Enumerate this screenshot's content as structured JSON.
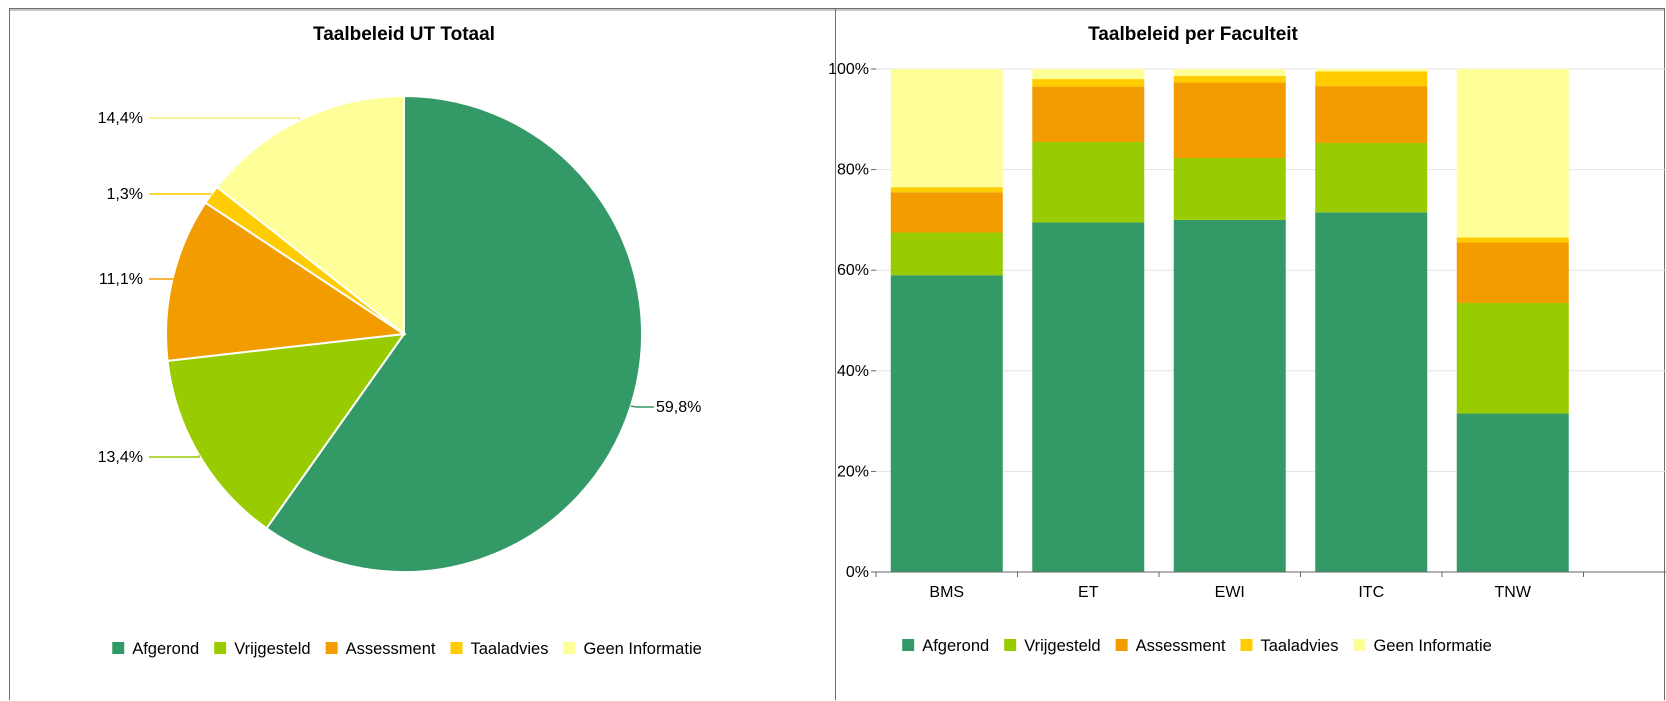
{
  "chart_data": [
    {
      "type": "pie",
      "title": "Taalbeleid UT Totaal",
      "slices": [
        {
          "label": "Afgerond",
          "value": 59.8,
          "value_label": "59,8%",
          "color": "#339966"
        },
        {
          "label": "Vrijgesteld",
          "value": 13.4,
          "value_label": "13,4%",
          "color": "#99cc00"
        },
        {
          "label": "Assessment",
          "value": 11.1,
          "value_label": "11,1%",
          "color": "#f39c00"
        },
        {
          "label": "Taaladvies",
          "value": 1.3,
          "value_label": "1,3%",
          "color": "#ffcc00"
        },
        {
          "label": "Geen Informatie",
          "value": 14.4,
          "value_label": "14,4%",
          "color": "#ffff99"
        }
      ],
      "legend": [
        "Afgerond",
        "Vrijgesteld",
        "Assessment",
        "Taaladvies",
        "Geen Informatie"
      ],
      "legend_position": "bottom"
    },
    {
      "type": "bar",
      "stacked": true,
      "percent": true,
      "title": "Taalbeleid per Faculteit",
      "categories": [
        "BMS",
        "ET",
        "EWI",
        "ITC",
        "TNW"
      ],
      "series": [
        {
          "name": "Afgerond",
          "color": "#339966",
          "values": [
            59,
            69.5,
            70,
            71.5,
            31.5
          ]
        },
        {
          "name": "Vrijgesteld",
          "color": "#99cc00",
          "values": [
            8.5,
            16,
            12.3,
            13.8,
            22
          ]
        },
        {
          "name": "Assessment",
          "color": "#f39c00",
          "values": [
            8,
            11,
            15,
            11.3,
            12
          ]
        },
        {
          "name": "Taaladvies",
          "color": "#ffcc00",
          "values": [
            1,
            1.5,
            1.3,
            2.9,
            1
          ]
        },
        {
          "name": "Geen Informatie",
          "color": "#ffff99",
          "values": [
            23.5,
            2,
            1.4,
            0.5,
            33.5
          ]
        }
      ],
      "ylim": [
        0,
        100
      ],
      "yticks": [
        "0%",
        "20%",
        "40%",
        "60%",
        "80%",
        "100%"
      ],
      "grid": true,
      "legend": [
        "Afgerond",
        "Vrijgesteld",
        "Assessment",
        "Taaladvies",
        "Geen Informatie"
      ],
      "legend_position": "bottom"
    }
  ]
}
